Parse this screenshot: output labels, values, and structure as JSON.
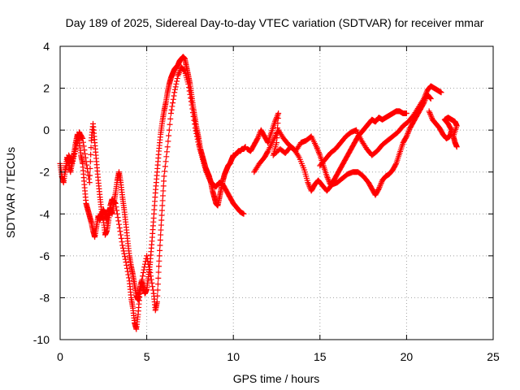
{
  "chart_data": {
    "type": "scatter",
    "title": "Day 189 of 2025, Sidereal Day-to-day VTEC variation (SDTVAR) for receiver mmar",
    "xlabel": "GPS time / hours",
    "ylabel": "SDTVAR / TECUs",
    "xlim": [
      0,
      25
    ],
    "ylim": [
      -10,
      4
    ],
    "xticks": [
      0,
      5,
      10,
      15,
      20,
      25
    ],
    "yticks": [
      -10,
      -8,
      -6,
      -4,
      -2,
      0,
      2,
      4
    ],
    "grid": true,
    "marker": "+",
    "color": "#ff0000",
    "series": [
      {
        "values": [
          [
            0.0,
            -1.6
          ],
          [
            0.1,
            -2.2
          ],
          [
            0.2,
            -2.5
          ],
          [
            0.3,
            -1.9
          ],
          [
            0.4,
            -1.3
          ],
          [
            0.5,
            -1.6
          ],
          [
            0.6,
            -2.0
          ],
          [
            0.7,
            -1.5
          ],
          [
            0.8,
            -1.1
          ],
          [
            0.9,
            -0.6
          ],
          [
            1.0,
            -0.2
          ],
          [
            1.1,
            -0.5
          ],
          [
            1.2,
            -1.2
          ],
          [
            1.3,
            -1.6
          ],
          [
            1.4,
            -2.6
          ],
          [
            1.5,
            -3.5
          ],
          [
            1.6,
            -3.8
          ],
          [
            1.7,
            -4.1
          ],
          [
            1.8,
            -4.4
          ],
          [
            1.9,
            -4.8
          ],
          [
            2.0,
            -5.1
          ],
          [
            2.1,
            -4.6
          ],
          [
            2.2,
            -4.1
          ],
          [
            2.3,
            -4.3
          ],
          [
            2.4,
            -4.0
          ],
          [
            2.5,
            -3.8
          ],
          [
            2.6,
            -4.0
          ],
          [
            2.7,
            -4.3
          ],
          [
            2.8,
            -3.9
          ],
          [
            2.9,
            -3.7
          ],
          [
            3.0,
            -4.0
          ],
          [
            3.1,
            -3.5
          ],
          [
            3.2,
            -3.0
          ],
          [
            3.3,
            -2.4
          ],
          [
            3.4,
            -2.0
          ],
          [
            3.5,
            -2.5
          ],
          [
            3.6,
            -3.2
          ],
          [
            3.7,
            -3.8
          ],
          [
            3.8,
            -4.5
          ],
          [
            3.9,
            -5.3
          ],
          [
            4.0,
            -6.0
          ],
          [
            4.1,
            -6.5
          ],
          [
            4.2,
            -6.9
          ],
          [
            4.3,
            -7.4
          ],
          [
            4.4,
            -7.9
          ],
          [
            4.5,
            -8.1
          ],
          [
            4.6,
            -7.6
          ],
          [
            4.7,
            -7.2
          ],
          [
            4.8,
            -7.5
          ],
          [
            4.9,
            -7.8
          ],
          [
            5.0,
            -7.6
          ],
          [
            5.1,
            -7.0
          ],
          [
            5.2,
            -6.3
          ],
          [
            5.3,
            -5.3
          ],
          [
            5.4,
            -4.2
          ],
          [
            5.5,
            -3.0
          ],
          [
            5.6,
            -2.0
          ],
          [
            5.7,
            -1.0
          ],
          [
            5.8,
            -0.2
          ],
          [
            5.9,
            0.4
          ],
          [
            6.0,
            0.9
          ],
          [
            6.1,
            1.3
          ],
          [
            6.2,
            1.8
          ],
          [
            6.3,
            2.2
          ],
          [
            6.4,
            2.5
          ],
          [
            6.5,
            2.7
          ],
          [
            6.6,
            2.9
          ],
          [
            6.7,
            3.0
          ],
          [
            6.8,
            3.1
          ],
          [
            6.9,
            3.3
          ],
          [
            7.0,
            3.4
          ],
          [
            7.1,
            3.5
          ],
          [
            7.2,
            3.4
          ],
          [
            7.3,
            3.0
          ],
          [
            7.4,
            2.6
          ],
          [
            7.5,
            2.2
          ],
          [
            7.6,
            1.6
          ],
          [
            7.7,
            1.0
          ],
          [
            7.8,
            0.5
          ],
          [
            7.9,
            0.0
          ],
          [
            8.0,
            -0.4
          ],
          [
            8.1,
            -0.9
          ],
          [
            8.2,
            -1.2
          ],
          [
            8.3,
            -1.5
          ],
          [
            8.4,
            -1.8
          ],
          [
            8.5,
            -2.0
          ],
          [
            8.6,
            -2.2
          ],
          [
            8.7,
            -2.5
          ],
          [
            8.8,
            -2.9
          ],
          [
            8.9,
            -3.2
          ],
          [
            9.0,
            -3.5
          ],
          [
            9.1,
            -3.6
          ],
          [
            9.2,
            -3.2
          ],
          [
            9.3,
            -2.8
          ],
          [
            9.4,
            -2.4
          ],
          [
            9.5,
            -2.1
          ],
          [
            9.6,
            -1.9
          ],
          [
            9.7,
            -1.7
          ],
          [
            9.8,
            -1.6
          ],
          [
            9.9,
            -1.4
          ],
          [
            10.0,
            -1.2
          ],
          [
            10.1,
            -1.2
          ],
          [
            10.2,
            -1.1
          ],
          [
            10.3,
            -1.0
          ],
          [
            10.4,
            -1.0
          ],
          [
            10.5,
            -0.9
          ],
          [
            10.6,
            -0.9
          ],
          [
            10.7,
            -0.8
          ]
        ]
      },
      {
        "values": [
          [
            0.3,
            -2.0
          ],
          [
            0.5,
            -1.2
          ],
          [
            0.7,
            -1.6
          ],
          [
            0.9,
            -0.9
          ],
          [
            1.1,
            -0.1
          ],
          [
            1.3,
            -0.4
          ],
          [
            1.5,
            -1.5
          ],
          [
            1.7,
            -2.5
          ],
          [
            1.8,
            -0.5
          ],
          [
            1.9,
            0.3
          ],
          [
            2.0,
            -0.6
          ],
          [
            2.1,
            -1.5
          ],
          [
            2.2,
            -2.4
          ],
          [
            2.3,
            -3.2
          ],
          [
            2.4,
            -3.9
          ],
          [
            2.5,
            -4.3
          ],
          [
            2.6,
            -5.0
          ],
          [
            2.7,
            -4.8
          ],
          [
            2.8,
            -4.3
          ],
          [
            2.9,
            -3.6
          ],
          [
            3.0,
            -3.3
          ],
          [
            3.2,
            -3.5
          ],
          [
            3.4,
            -4.5
          ],
          [
            3.6,
            -5.5
          ],
          [
            3.8,
            -6.3
          ],
          [
            4.0,
            -7.2
          ],
          [
            4.1,
            -8.0
          ],
          [
            4.2,
            -8.5
          ],
          [
            4.3,
            -9.2
          ],
          [
            4.4,
            -9.5
          ],
          [
            4.5,
            -8.8
          ],
          [
            4.6,
            -7.8
          ],
          [
            4.8,
            -6.8
          ],
          [
            5.0,
            -6.0
          ],
          [
            5.2,
            -6.8
          ],
          [
            5.4,
            -7.8
          ],
          [
            5.5,
            -8.6
          ],
          [
            5.6,
            -8.2
          ],
          [
            5.7,
            -6.5
          ],
          [
            5.8,
            -5.0
          ],
          [
            5.9,
            -3.6
          ],
          [
            6.0,
            -2.2
          ],
          [
            6.2,
            -0.8
          ],
          [
            6.4,
            0.8
          ],
          [
            6.6,
            1.8
          ],
          [
            6.8,
            2.6
          ],
          [
            7.0,
            3.0
          ],
          [
            7.2,
            2.8
          ],
          [
            7.4,
            2.2
          ],
          [
            7.6,
            1.2
          ],
          [
            7.8,
            0.1
          ],
          [
            8.0,
            -0.7
          ],
          [
            8.2,
            -1.3
          ],
          [
            8.4,
            -1.9
          ],
          [
            8.6,
            -2.3
          ],
          [
            8.8,
            -2.6
          ],
          [
            9.0,
            -2.7
          ],
          [
            9.2,
            -2.5
          ],
          [
            9.4,
            -2.6
          ],
          [
            9.6,
            -2.9
          ],
          [
            9.8,
            -3.2
          ],
          [
            10.0,
            -3.5
          ],
          [
            10.2,
            -3.7
          ],
          [
            10.4,
            -3.9
          ],
          [
            10.6,
            -4.0
          ]
        ]
      },
      {
        "values": [
          [
            10.8,
            -0.9
          ],
          [
            11.0,
            -1.0
          ],
          [
            11.2,
            -0.7
          ],
          [
            11.4,
            -0.4
          ],
          [
            11.6,
            0.0
          ],
          [
            11.8,
            -0.3
          ],
          [
            12.0,
            -0.6
          ],
          [
            12.2,
            -0.1
          ],
          [
            12.4,
            0.4
          ],
          [
            12.6,
            0.8
          ],
          [
            12.5,
            -0.6
          ],
          [
            12.3,
            -1.2
          ],
          [
            12.7,
            -0.9
          ],
          [
            13.0,
            -1.1
          ],
          [
            13.3,
            -0.8
          ],
          [
            13.6,
            -1.0
          ],
          [
            13.9,
            -0.6
          ],
          [
            14.2,
            -0.5
          ],
          [
            14.5,
            -0.3
          ],
          [
            14.8,
            -0.8
          ],
          [
            15.0,
            -1.2
          ],
          [
            15.2,
            -1.7
          ],
          [
            15.4,
            -2.2
          ],
          [
            15.6,
            -2.6
          ],
          [
            15.8,
            -2.4
          ],
          [
            16.0,
            -2.1
          ],
          [
            16.2,
            -1.8
          ],
          [
            16.4,
            -1.5
          ],
          [
            16.6,
            -1.2
          ],
          [
            16.8,
            -0.9
          ],
          [
            17.0,
            -0.6
          ],
          [
            17.2,
            -0.3
          ],
          [
            17.4,
            -0.1
          ],
          [
            17.6,
            0.1
          ],
          [
            17.8,
            0.3
          ],
          [
            18.0,
            0.5
          ],
          [
            18.2,
            0.4
          ],
          [
            18.4,
            0.6
          ],
          [
            18.6,
            0.5
          ],
          [
            18.8,
            0.6
          ],
          [
            19.0,
            0.7
          ],
          [
            19.2,
            0.8
          ],
          [
            19.4,
            0.9
          ],
          [
            19.6,
            0.9
          ],
          [
            19.8,
            0.8
          ],
          [
            20.0,
            0.8
          ]
        ]
      },
      {
        "values": [
          [
            11.2,
            -2.0
          ],
          [
            11.5,
            -1.6
          ],
          [
            11.8,
            -1.3
          ],
          [
            12.0,
            -1.0
          ],
          [
            12.3,
            -0.5
          ],
          [
            12.6,
            0.0
          ],
          [
            12.9,
            -0.4
          ],
          [
            13.2,
            -0.7
          ],
          [
            13.5,
            -0.9
          ],
          [
            13.8,
            -1.3
          ],
          [
            14.1,
            -1.9
          ],
          [
            14.3,
            -2.5
          ],
          [
            14.5,
            -2.9
          ],
          [
            14.7,
            -2.6
          ],
          [
            14.9,
            -2.4
          ],
          [
            15.1,
            -2.6
          ],
          [
            15.4,
            -2.9
          ],
          [
            15.7,
            -2.6
          ],
          [
            16.0,
            -2.5
          ],
          [
            16.3,
            -2.3
          ],
          [
            16.6,
            -2.1
          ],
          [
            16.9,
            -2.0
          ],
          [
            17.2,
            -2.0
          ],
          [
            17.5,
            -2.2
          ],
          [
            17.8,
            -2.5
          ],
          [
            18.0,
            -2.8
          ],
          [
            18.2,
            -3.1
          ],
          [
            18.4,
            -2.8
          ],
          [
            18.6,
            -2.4
          ],
          [
            18.8,
            -2.2
          ],
          [
            19.0,
            -2.1
          ],
          [
            19.2,
            -1.9
          ],
          [
            19.4,
            -1.6
          ],
          [
            19.6,
            -1.1
          ],
          [
            19.8,
            -0.6
          ],
          [
            20.0,
            -0.3
          ],
          [
            20.2,
            0.1
          ],
          [
            20.4,
            0.4
          ],
          [
            20.6,
            0.7
          ],
          [
            20.8,
            1.0
          ],
          [
            21.0,
            1.3
          ],
          [
            21.2,
            1.7
          ],
          [
            21.4,
            1.5
          ]
        ]
      },
      {
        "values": [
          [
            15.0,
            -1.7
          ],
          [
            15.3,
            -1.4
          ],
          [
            15.6,
            -1.1
          ],
          [
            15.9,
            -0.9
          ],
          [
            16.2,
            -0.6
          ],
          [
            16.5,
            -0.3
          ],
          [
            16.8,
            -0.1
          ],
          [
            17.1,
            0.0
          ],
          [
            17.4,
            -0.5
          ],
          [
            17.7,
            -0.9
          ],
          [
            18.0,
            -1.2
          ],
          [
            18.3,
            -1.0
          ],
          [
            18.6,
            -0.7
          ],
          [
            18.9,
            -0.5
          ],
          [
            19.2,
            -0.3
          ],
          [
            19.5,
            -0.1
          ],
          [
            19.8,
            0.2
          ],
          [
            20.1,
            0.4
          ],
          [
            20.4,
            0.7
          ],
          [
            20.7,
            1.1
          ],
          [
            21.0,
            1.5
          ],
          [
            21.2,
            1.9
          ],
          [
            21.4,
            2.1
          ],
          [
            21.6,
            2.0
          ],
          [
            21.8,
            1.9
          ],
          [
            22.0,
            1.8
          ]
        ]
      },
      {
        "values": [
          [
            21.3,
            0.9
          ],
          [
            21.5,
            0.5
          ],
          [
            21.7,
            0.3
          ],
          [
            21.9,
            0.1
          ],
          [
            22.1,
            -0.2
          ],
          [
            22.3,
            -0.4
          ],
          [
            22.5,
            -0.3
          ],
          [
            22.6,
            0.0
          ],
          [
            22.4,
            0.3
          ],
          [
            22.2,
            0.5
          ],
          [
            22.4,
            0.6
          ],
          [
            22.6,
            0.5
          ],
          [
            22.8,
            0.4
          ],
          [
            22.9,
            0.2
          ],
          [
            22.7,
            -0.3
          ],
          [
            22.8,
            -0.6
          ],
          [
            22.9,
            -0.8
          ]
        ]
      }
    ]
  }
}
